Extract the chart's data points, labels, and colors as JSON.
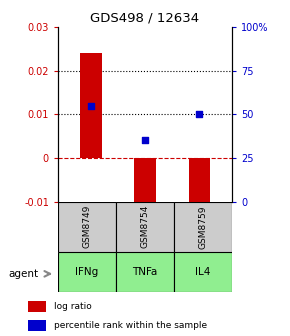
{
  "title": "GDS498 / 12634",
  "samples": [
    "GSM8749",
    "GSM8754",
    "GSM8759"
  ],
  "agents": [
    "IFNg",
    "TNFa",
    "IL4"
  ],
  "log_ratios": [
    0.024,
    -0.011,
    -0.01
  ],
  "percentile_ranks": [
    55,
    35,
    50
  ],
  "bar_color": "#cc0000",
  "dot_color": "#0000cc",
  "ylim_left": [
    -0.01,
    0.03
  ],
  "ylim_right": [
    0,
    100
  ],
  "yticks_left": [
    -0.01,
    0,
    0.01,
    0.02,
    0.03
  ],
  "ytick_labels_left": [
    "-0.01",
    "0",
    "0.01",
    "0.02",
    "0.03"
  ],
  "yticks_right": [
    0,
    25,
    50,
    75,
    100
  ],
  "ytick_labels_right": [
    "0",
    "25",
    "50",
    "75",
    "100%"
  ],
  "hline_dotted": [
    0.01,
    0.02
  ],
  "hline_dashed": 0,
  "sample_box_color": "#cccccc",
  "agent_box_color": "#90ee90",
  "legend_bar_label": "log ratio",
  "legend_dot_label": "percentile rank within the sample",
  "bar_width": 0.4
}
